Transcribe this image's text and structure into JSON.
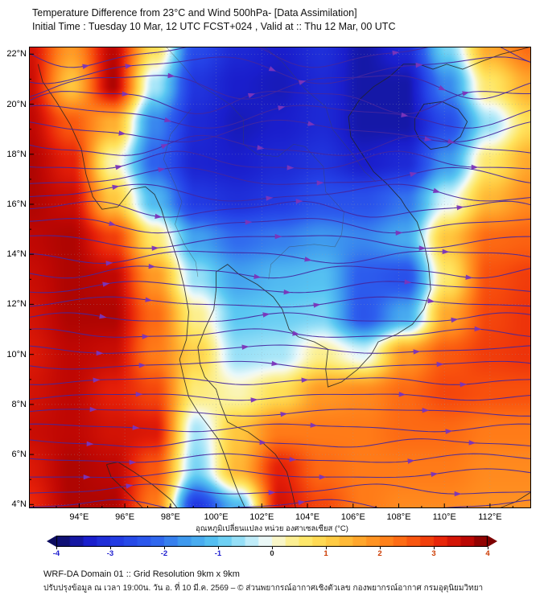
{
  "header": {
    "title_line1": "Temperature Difference from 23°C and Wind 500hPa- [Data Assimilation]",
    "title_line2": "Initial Time : Tuesday 10 Mar, 12 UTC FCST+024 , Valid at ::  Thu 12 Mar, 00 UTC"
  },
  "footer": {
    "line1": "WRF-DA Domain 01 :: Grid Resolution 9km x 9km",
    "line2": "ปรับปรุงข้อมูล ณ เวลา 19:00น. วัน อ. ที่ 10 มี.ค. 2569 – © ส่วนพยากรณ์อากาศเชิงตัวเลข กองพยากรณ์อากาศ กรมอุตุนิยมวิทยา"
  },
  "chart_data": {
    "type": "heatmap",
    "title": "Temperature Difference from 23°C and Wind 500hPa- [Data Assimilation]",
    "subtitle": "Initial Time : Tuesday 10 Mar, 12 UTC FCST+024 , Valid at ::  Thu 12 Mar, 00 UTC",
    "field_name": "Temperature difference from 23°C (°C)",
    "wind_overlay": {
      "level": "500hPa",
      "style": "streamlines with arrowheads",
      "line_color": "#44269e",
      "arrow_color": "#7b35bb"
    },
    "x_axis": {
      "range": [
        91.8,
        113.8
      ],
      "tick_values": [
        94,
        96,
        98,
        100,
        102,
        104,
        106,
        108,
        110,
        112
      ],
      "tick_labels": [
        "94°E",
        "96°E",
        "98°E",
        "100°E",
        "102°E",
        "104°E",
        "106°E",
        "108°E",
        "110°E",
        "112°E"
      ]
    },
    "y_axis": {
      "range": [
        3.85,
        22.3
      ],
      "tick_values": [
        22,
        20,
        18,
        16,
        14,
        12,
        10,
        8,
        6,
        4
      ],
      "tick_labels": [
        "22°N",
        "20°N",
        "18°N",
        "16°N",
        "14°N",
        "12°N",
        "10°N",
        "8°N",
        "6°N",
        "4°N"
      ]
    },
    "colorbar": {
      "label": "อุณหภูมิเปลี่ยนแปลง หน่วย องศาเซลเซียส (°C)",
      "range": [
        -4,
        4
      ],
      "tick_values": [
        -4,
        -3,
        -2,
        -1,
        0,
        1,
        2,
        3,
        4
      ],
      "tick_labels": [
        "-4",
        "-3",
        "-2",
        "-1",
        "0",
        "1",
        "2",
        "3",
        "4"
      ],
      "stops": [
        {
          "v": -4.0,
          "c": "#0c0c5e"
        },
        {
          "v": -3.4,
          "c": "#1a1ecc"
        },
        {
          "v": -2.8,
          "c": "#2440e6"
        },
        {
          "v": -2.2,
          "c": "#2e61ee"
        },
        {
          "v": -1.6,
          "c": "#3f9bee"
        },
        {
          "v": -1.0,
          "c": "#5ac8f2"
        },
        {
          "v": -0.5,
          "c": "#a8e6f8"
        },
        {
          "v": -0.15,
          "c": "#e8f8fa"
        },
        {
          "v": 0.0,
          "c": "#f8f9e6"
        },
        {
          "v": 0.3,
          "c": "#fbf29e"
        },
        {
          "v": 0.7,
          "c": "#ffe45e"
        },
        {
          "v": 1.2,
          "c": "#ffc63e"
        },
        {
          "v": 1.7,
          "c": "#ffa028"
        },
        {
          "v": 2.2,
          "c": "#ff7b18"
        },
        {
          "v": 2.7,
          "c": "#f8500d"
        },
        {
          "v": 3.2,
          "c": "#e51f08"
        },
        {
          "v": 3.6,
          "c": "#bf0703"
        },
        {
          "v": 4.0,
          "c": "#7d0000"
        }
      ]
    },
    "grid": {
      "lons": [
        91.8,
        93.63,
        95.47,
        97.3,
        99.13,
        100.97,
        102.8,
        104.63,
        106.47,
        108.3,
        110.13,
        111.97,
        113.8
      ],
      "lats": [
        22.3,
        20.76,
        19.23,
        17.69,
        16.15,
        14.61,
        13.08,
        11.54,
        10.0,
        8.46,
        6.92,
        5.38,
        3.85
      ],
      "values_c": [
        [
          3.4,
          1.8,
          3.6,
          0.8,
          -2.6,
          -3.2,
          -3.4,
          -3.1,
          -3.6,
          -3.2,
          -0.8,
          1.6,
          2.4
        ],
        [
          3.5,
          1.2,
          3.7,
          -0.5,
          -3.0,
          -3.4,
          -3.5,
          -3.2,
          -3.6,
          -3.6,
          -1.8,
          0.6,
          1.6
        ],
        [
          3.6,
          2.6,
          1.5,
          -1.8,
          -3.2,
          -3.5,
          -3.4,
          -3.2,
          -3.6,
          -3.6,
          -2.6,
          -0.6,
          0.8
        ],
        [
          3.7,
          3.2,
          0.2,
          -2.2,
          -3.3,
          -3.4,
          -3.2,
          -3.0,
          -3.4,
          -3.2,
          -1.6,
          0.6,
          1.6
        ],
        [
          3.7,
          3.5,
          1.2,
          -1.2,
          -2.9,
          -3.1,
          -2.9,
          -2.5,
          -2.5,
          -2.0,
          -0.2,
          1.4,
          2.0
        ],
        [
          3.6,
          3.7,
          2.9,
          0.6,
          -1.5,
          -2.1,
          -1.9,
          -1.6,
          -1.8,
          -1.4,
          1.2,
          2.4,
          2.5
        ],
        [
          3.5,
          3.7,
          3.6,
          1.8,
          -0.6,
          -1.5,
          -1.2,
          -1.1,
          -2.3,
          -2.5,
          0.6,
          2.7,
          2.9
        ],
        [
          3.4,
          3.7,
          3.7,
          2.4,
          0.4,
          -1.0,
          -0.9,
          -0.8,
          -2.4,
          -1.4,
          1.6,
          2.8,
          3.0
        ],
        [
          3.3,
          3.6,
          3.5,
          2.2,
          1.0,
          -0.6,
          -0.5,
          0.4,
          -0.2,
          1.8,
          2.6,
          2.9,
          3.0
        ],
        [
          3.4,
          3.6,
          3.2,
          2.8,
          0.5,
          0.2,
          0.8,
          1.8,
          2.0,
          2.4,
          2.8,
          2.7,
          2.7
        ],
        [
          3.5,
          3.6,
          3.4,
          3.3,
          -0.5,
          1.2,
          2.2,
          2.2,
          2.2,
          2.4,
          2.4,
          2.2,
          2.2
        ],
        [
          3.3,
          3.7,
          3.6,
          2.6,
          -0.8,
          1.4,
          3.2,
          2.4,
          2.2,
          2.2,
          2.2,
          2.0,
          2.0
        ],
        [
          3.1,
          3.7,
          3.7,
          2.2,
          -3.0,
          -1.2,
          3.4,
          2.8,
          2.2,
          2.0,
          2.0,
          1.9,
          1.9
        ]
      ]
    }
  }
}
